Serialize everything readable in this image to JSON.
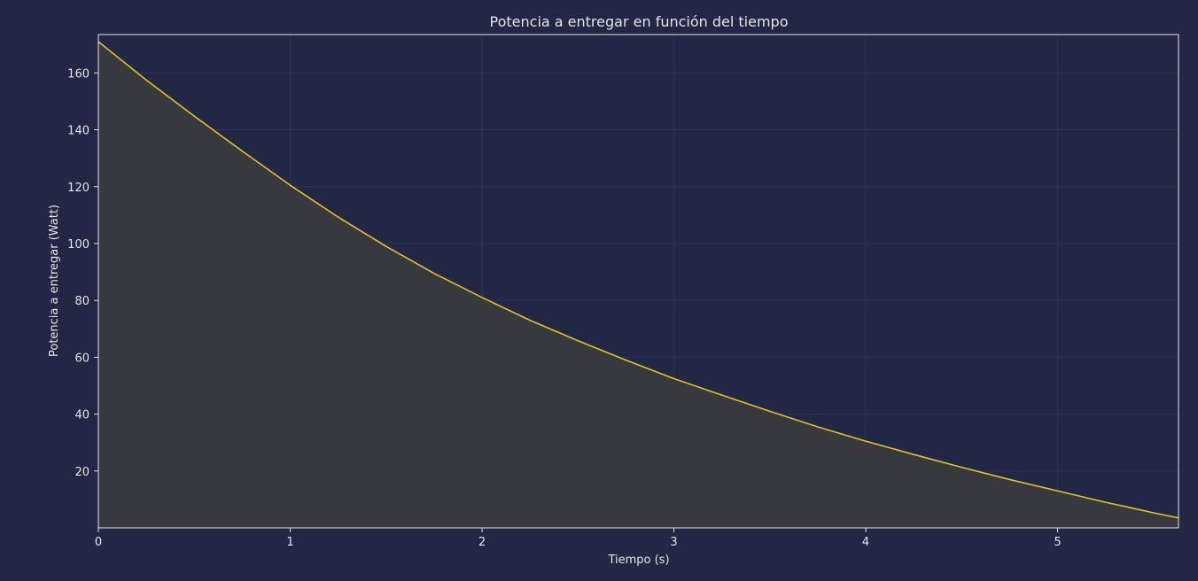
{
  "chart_data": {
    "type": "area",
    "title": "Potencia a entregar en función del tiempo",
    "xlabel": "Tiempo (s)",
    "ylabel": "Potencia a entregar (Watt)",
    "xlim": [
      0,
      5.63
    ],
    "ylim": [
      0,
      173.5
    ],
    "x_ticks": [
      "0",
      "1",
      "2",
      "3",
      "4",
      "5"
    ],
    "y_ticks": [
      "20",
      "40",
      "60",
      "80",
      "100",
      "120",
      "140",
      "160"
    ],
    "grid": true,
    "series": [
      {
        "x": [
          0,
          0.25,
          0.5,
          0.75,
          1.0,
          1.25,
          1.5,
          1.75,
          2.0,
          2.25,
          2.5,
          2.75,
          3.0,
          3.25,
          3.5,
          3.75,
          4.0,
          4.25,
          4.5,
          4.75,
          5.0,
          5.25,
          5.5,
          5.63
        ],
        "values": [
          171,
          157.5,
          144.8,
          132.5,
          120.5,
          109.3,
          99.0,
          89.5,
          81.0,
          73.0,
          65.8,
          59.0,
          52.5,
          46.7,
          41.0,
          35.5,
          30.5,
          25.8,
          21.3,
          17.0,
          13.0,
          9.0,
          5.3,
          3.5
        ]
      }
    ],
    "colors": {
      "background": "#212745",
      "plot_background": "#212745",
      "fill": "#38393f",
      "line": "#e6c21a",
      "grid": "#2e3458",
      "frame": "#e6e6e6",
      "text": "#e6e6e6"
    }
  }
}
